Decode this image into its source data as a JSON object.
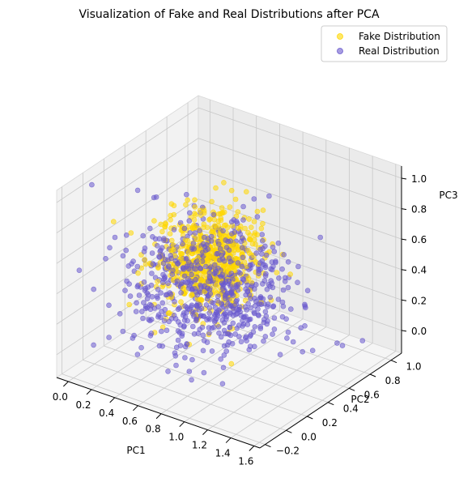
{
  "chart_data": {
    "type": "scatter",
    "projection": "3d",
    "title": "Visualization of Fake and Real Distributions after PCA",
    "xlabel": "PC1",
    "ylabel": "PC2",
    "zlabel": "PC3",
    "x_ticks": [
      "0.0",
      "0.2",
      "0.4",
      "0.6",
      "0.8",
      "1.0",
      "1.2",
      "1.4",
      "1.6"
    ],
    "y_ticks": [
      "−0.2",
      "0.0",
      "0.2",
      "0.4",
      "0.6",
      "0.8",
      "1.0"
    ],
    "z_ticks": [
      "0.0",
      "0.2",
      "0.4",
      "0.6",
      "0.8",
      "1.0"
    ],
    "xlim": [
      -0.1,
      1.65
    ],
    "ylim": [
      -0.25,
      1.1
    ],
    "zlim": [
      -0.15,
      1.08
    ],
    "grid": true,
    "legend_position": "top-right",
    "series": [
      {
        "name": "Fake Distribution",
        "color": "#FFD700",
        "count": 700,
        "center": [
          0.55,
          0.48,
          0.45
        ],
        "spread": [
          0.18,
          0.15,
          0.14
        ]
      },
      {
        "name": "Real Distribution",
        "color": "#6A5ACD",
        "count": 700,
        "center": [
          0.62,
          0.42,
          0.32
        ],
        "spread": [
          0.3,
          0.22,
          0.2
        ]
      }
    ]
  }
}
